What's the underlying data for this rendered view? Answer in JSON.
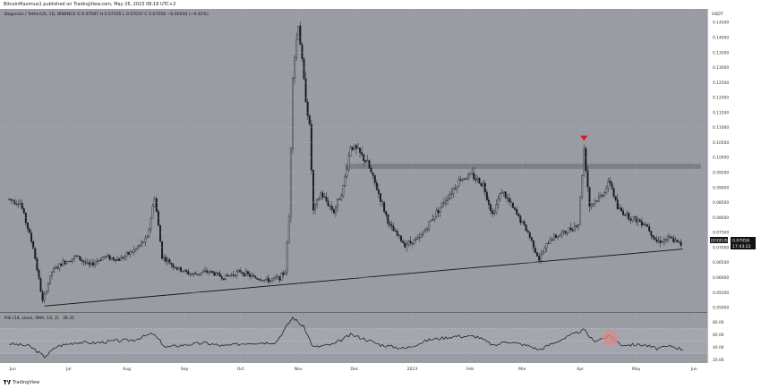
{
  "header": {
    "published": "BitcoinMaximus1 published on TradingView.com, May 26, 2023 08:16 UTC+2"
  },
  "footer": {
    "brand": "TradingView"
  },
  "legend": {
    "symbol_line": "Dogecoin / TetherUS, 1D, BINANCE",
    "ohlc": "O 0.07087  H 0.07105  L 0.07037  C 0.07058  −0.00030 (−0.42%)",
    "rsi_line": "RSI (14, close, SMA, 14, 2)",
    "rsi_value": "36.31"
  },
  "price_axis": {
    "currency": "USDT",
    "ticks": [
      "0.14500",
      "0.14000",
      "0.13500",
      "0.13000",
      "0.12500",
      "0.12000",
      "0.11500",
      "0.11000",
      "0.10500",
      "0.10000",
      "0.09500",
      "0.09000",
      "0.08500",
      "0.08000",
      "0.07500",
      "0.07000",
      "0.06500",
      "0.06000",
      "0.05500",
      "0.05000"
    ]
  },
  "rsi_axis": {
    "ticks": [
      "80.00",
      "60.00",
      "40.00",
      "20.00"
    ]
  },
  "time_axis": {
    "ticks": [
      "Jun",
      "Jul",
      "Aug",
      "Sep",
      "Oct",
      "Nov",
      "Dec",
      "2023",
      "Feb",
      "Mar",
      "Apr",
      "May",
      "Jun"
    ]
  },
  "price_label": {
    "symbol": "DOGEUSDT",
    "price": "0.07058",
    "countdown": "17:43:22"
  },
  "colors": {
    "pane": "#9a9ca3",
    "candle": "#1a1a1a",
    "resistance_band": "#7d7f85",
    "rsi_band": "#a4a6ad",
    "arrow": "#e01818",
    "circle": "#d98b8b"
  },
  "chart_data": {
    "type": "candlestick",
    "symbol": "DOGEUSDT",
    "exchange": "BINANCE",
    "interval": "1D",
    "ylim": [
      0.0485,
      0.1495
    ],
    "close_path": [
      {
        "x": "2022-05-30",
        "y": 0.086
      },
      {
        "x": "2022-06-05",
        "y": 0.085
      },
      {
        "x": "2022-06-12",
        "y": 0.07
      },
      {
        "x": "2022-06-17",
        "y": 0.052
      },
      {
        "x": "2022-06-22",
        "y": 0.062
      },
      {
        "x": "2022-06-28",
        "y": 0.065
      },
      {
        "x": "2022-07-05",
        "y": 0.067
      },
      {
        "x": "2022-07-12",
        "y": 0.064
      },
      {
        "x": "2022-07-20",
        "y": 0.067
      },
      {
        "x": "2022-07-28",
        "y": 0.066
      },
      {
        "x": "2022-08-05",
        "y": 0.069
      },
      {
        "x": "2022-08-12",
        "y": 0.073
      },
      {
        "x": "2022-08-16",
        "y": 0.087
      },
      {
        "x": "2022-08-20",
        "y": 0.067
      },
      {
        "x": "2022-08-28",
        "y": 0.063
      },
      {
        "x": "2022-09-05",
        "y": 0.061
      },
      {
        "x": "2022-09-14",
        "y": 0.062
      },
      {
        "x": "2022-09-22",
        "y": 0.06
      },
      {
        "x": "2022-10-01",
        "y": 0.062
      },
      {
        "x": "2022-10-08",
        "y": 0.06
      },
      {
        "x": "2022-10-16",
        "y": 0.059
      },
      {
        "x": "2022-10-22",
        "y": 0.06
      },
      {
        "x": "2022-10-25",
        "y": 0.062
      },
      {
        "x": "2022-10-27",
        "y": 0.08
      },
      {
        "x": "2022-10-29",
        "y": 0.128
      },
      {
        "x": "2022-11-01",
        "y": 0.145
      },
      {
        "x": "2022-11-04",
        "y": 0.125
      },
      {
        "x": "2022-11-07",
        "y": 0.11
      },
      {
        "x": "2022-11-09",
        "y": 0.082
      },
      {
        "x": "2022-11-13",
        "y": 0.088
      },
      {
        "x": "2022-11-20",
        "y": 0.082
      },
      {
        "x": "2022-11-25",
        "y": 0.09
      },
      {
        "x": "2022-11-29",
        "y": 0.104
      },
      {
        "x": "2022-12-03",
        "y": 0.102
      },
      {
        "x": "2022-12-08",
        "y": 0.098
      },
      {
        "x": "2022-12-14",
        "y": 0.088
      },
      {
        "x": "2022-12-20",
        "y": 0.077
      },
      {
        "x": "2022-12-28",
        "y": 0.071
      },
      {
        "x": "2023-01-05",
        "y": 0.073
      },
      {
        "x": "2023-01-12",
        "y": 0.08
      },
      {
        "x": "2023-01-20",
        "y": 0.087
      },
      {
        "x": "2023-01-27",
        "y": 0.093
      },
      {
        "x": "2023-02-02",
        "y": 0.094
      },
      {
        "x": "2023-02-08",
        "y": 0.091
      },
      {
        "x": "2023-02-13",
        "y": 0.081
      },
      {
        "x": "2023-02-18",
        "y": 0.089
      },
      {
        "x": "2023-02-25",
        "y": 0.082
      },
      {
        "x": "2023-03-04",
        "y": 0.075
      },
      {
        "x": "2023-03-10",
        "y": 0.066
      },
      {
        "x": "2023-03-16",
        "y": 0.073
      },
      {
        "x": "2023-03-24",
        "y": 0.075
      },
      {
        "x": "2023-03-31",
        "y": 0.078
      },
      {
        "x": "2023-04-03",
        "y": 0.103
      },
      {
        "x": "2023-04-06",
        "y": 0.084
      },
      {
        "x": "2023-04-12",
        "y": 0.087
      },
      {
        "x": "2023-04-17",
        "y": 0.092
      },
      {
        "x": "2023-04-21",
        "y": 0.083
      },
      {
        "x": "2023-04-28",
        "y": 0.08
      },
      {
        "x": "2023-05-06",
        "y": 0.078
      },
      {
        "x": "2023-05-12",
        "y": 0.072
      },
      {
        "x": "2023-05-19",
        "y": 0.073
      },
      {
        "x": "2023-05-26",
        "y": 0.07058
      }
    ],
    "resistance_zone": {
      "from": "2022-11-26",
      "to": "2023-05-26",
      "low": 0.0962,
      "high": 0.0979
    },
    "support_line": [
      {
        "x": "2022-06-18",
        "y": 0.0505
      },
      {
        "x": "2023-05-26",
        "y": 0.0695
      }
    ],
    "marker": {
      "type": "arrow-down",
      "x": "2023-04-03",
      "y": 0.1055
    },
    "rsi": {
      "ylim": [
        15,
        95
      ],
      "band": [
        30,
        70
      ],
      "values": [
        {
          "x": "2022-05-30",
          "y": 46
        },
        {
          "x": "2022-06-10",
          "y": 42
        },
        {
          "x": "2022-06-18",
          "y": 25
        },
        {
          "x": "2022-06-25",
          "y": 42
        },
        {
          "x": "2022-07-05",
          "y": 48
        },
        {
          "x": "2022-07-15",
          "y": 47
        },
        {
          "x": "2022-07-25",
          "y": 50
        },
        {
          "x": "2022-08-05",
          "y": 52
        },
        {
          "x": "2022-08-15",
          "y": 62
        },
        {
          "x": "2022-08-22",
          "y": 40
        },
        {
          "x": "2022-09-01",
          "y": 44
        },
        {
          "x": "2022-09-12",
          "y": 47
        },
        {
          "x": "2022-09-22",
          "y": 42
        },
        {
          "x": "2022-10-05",
          "y": 47
        },
        {
          "x": "2022-10-20",
          "y": 48
        },
        {
          "x": "2022-10-29",
          "y": 88
        },
        {
          "x": "2022-11-04",
          "y": 72
        },
        {
          "x": "2022-11-09",
          "y": 40
        },
        {
          "x": "2022-11-20",
          "y": 45
        },
        {
          "x": "2022-11-29",
          "y": 60
        },
        {
          "x": "2022-12-05",
          "y": 55
        },
        {
          "x": "2022-12-15",
          "y": 44
        },
        {
          "x": "2022-12-28",
          "y": 38
        },
        {
          "x": "2023-01-10",
          "y": 52
        },
        {
          "x": "2023-01-25",
          "y": 58
        },
        {
          "x": "2023-02-05",
          "y": 57
        },
        {
          "x": "2023-02-14",
          "y": 42
        },
        {
          "x": "2023-02-20",
          "y": 50
        },
        {
          "x": "2023-03-05",
          "y": 42
        },
        {
          "x": "2023-03-10",
          "y": 36
        },
        {
          "x": "2023-03-20",
          "y": 50
        },
        {
          "x": "2023-04-03",
          "y": 68
        },
        {
          "x": "2023-04-08",
          "y": 50
        },
        {
          "x": "2023-04-17",
          "y": 58
        },
        {
          "x": "2023-04-23",
          "y": 44
        },
        {
          "x": "2023-05-05",
          "y": 44
        },
        {
          "x": "2023-05-12",
          "y": 38
        },
        {
          "x": "2023-05-20",
          "y": 42
        },
        {
          "x": "2023-05-26",
          "y": 36.31
        }
      ],
      "highlight": {
        "x": "2023-04-17",
        "y": 55
      }
    }
  }
}
